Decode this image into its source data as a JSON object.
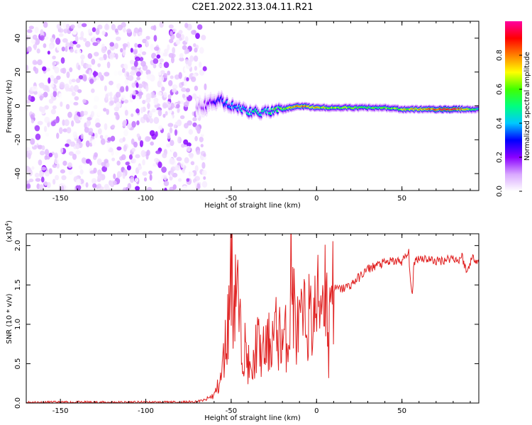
{
  "figure": {
    "title": "C2E1.2022.313.04.11.R21"
  },
  "chart_data": [
    {
      "type": "heatmap",
      "title": "C2E1.2022.313.04.11.R21",
      "xlabel": "Height of straight line (km)",
      "ylabel": "Frequency (Hz)",
      "xlim": [
        -170,
        95
      ],
      "ylim": [
        -50,
        50
      ],
      "xticks": [
        -150,
        -100,
        -50,
        0,
        50
      ],
      "yticks": [
        -40,
        -20,
        0,
        20,
        40
      ],
      "xtick_labels": [
        "-150",
        "-100",
        "-50",
        "0",
        "50"
      ],
      "ytick_labels": [
        "-40",
        "-20",
        "0",
        "20",
        "40"
      ],
      "grid": false,
      "colorbar": {
        "label": "Normalized spectral amplitude",
        "range": [
          0,
          1
        ],
        "ticks": [
          0.0,
          0.2,
          0.4,
          0.6,
          0.8
        ],
        "tick_labels": [
          "0.0",
          "0.2",
          "0.4",
          "0.6",
          "0.8"
        ],
        "colormap": "rainbow",
        "colors": [
          "#ffffff",
          "#d9a8ff",
          "#8a00ff",
          "#0000ff",
          "#00c8ff",
          "#00ff80",
          "#40ff00",
          "#ffff00",
          "#ff8000",
          "#ff0000",
          "#ff00a0"
        ]
      },
      "noise_region": {
        "x": [
          -170,
          -65
        ],
        "y": [
          -50,
          48
        ],
        "amplitude": 0.15
      },
      "ridge": [
        {
          "x": -70,
          "y": -1,
          "width": 12,
          "amplitude": 0.1
        },
        {
          "x": -60,
          "y": 2,
          "width": 10,
          "amplitude": 0.25
        },
        {
          "x": -55,
          "y": 3,
          "width": 9,
          "amplitude": 0.35
        },
        {
          "x": -50,
          "y": 0,
          "width": 8,
          "amplitude": 0.4
        },
        {
          "x": -40,
          "y": -3,
          "width": 7,
          "amplitude": 0.45
        },
        {
          "x": -30,
          "y": -4,
          "width": 7,
          "amplitude": 0.5
        },
        {
          "x": -20,
          "y": -2,
          "width": 6,
          "amplitude": 0.6
        },
        {
          "x": -10,
          "y": 0,
          "width": 5,
          "amplitude": 0.9
        },
        {
          "x": 0,
          "y": -1,
          "width": 5,
          "amplitude": 0.7
        },
        {
          "x": 10,
          "y": -1,
          "width": 5,
          "amplitude": 0.65
        },
        {
          "x": 20,
          "y": -1,
          "width": 5,
          "amplitude": 0.6
        },
        {
          "x": 30,
          "y": -1,
          "width": 5,
          "amplitude": 0.55
        },
        {
          "x": 40,
          "y": -1,
          "width": 5,
          "amplitude": 0.6
        },
        {
          "x": 50,
          "y": -2,
          "width": 5,
          "amplitude": 0.65
        },
        {
          "x": 60,
          "y": -2,
          "width": 5,
          "amplitude": 0.75
        },
        {
          "x": 70,
          "y": -2,
          "width": 5,
          "amplitude": 0.85
        },
        {
          "x": 80,
          "y": -2,
          "width": 5,
          "amplitude": 0.95
        },
        {
          "x": 88,
          "y": -2,
          "width": 5,
          "amplitude": 0.7
        },
        {
          "x": 95,
          "y": -2,
          "width": 5,
          "amplitude": 0.5
        }
      ]
    },
    {
      "type": "line",
      "xlabel": "Height of straight line (km)",
      "ylabel": "SNR (10 * v/v)",
      "y_multiplier_label": "(x10",
      "y_multiplier_exponent": "4",
      "y_multiplier_suffix": ")",
      "xlim": [
        -170,
        95
      ],
      "ylim": [
        0,
        2.15
      ],
      "xticks": [
        -150,
        -100,
        -50,
        0,
        50
      ],
      "yticks": [
        0.0,
        0.5,
        1.0,
        1.5,
        2.0
      ],
      "xtick_labels": [
        "-150",
        "-100",
        "-50",
        "0",
        "50"
      ],
      "ytick_labels": [
        "0.0",
        "0.5",
        "1.0",
        "1.5",
        "2.0"
      ],
      "grid": false,
      "line_color": "#e02020",
      "series": [
        {
          "x": [
            -170,
            -140,
            -100,
            -80,
            -70,
            -65,
            -60,
            -56,
            -53,
            -51,
            -50,
            -49,
            -47,
            -45,
            -42,
            -38,
            -35,
            -32,
            -28,
            -24,
            -20,
            -16,
            -15,
            -12,
            -8,
            -5,
            -3,
            0,
            3,
            6,
            7,
            8,
            10,
            15,
            20,
            25,
            30,
            35,
            40,
            45,
            50,
            54,
            56,
            57,
            60,
            65,
            70,
            75,
            80,
            83,
            85,
            88,
            90,
            92,
            95
          ],
          "y": [
            0.01,
            0.01,
            0.01,
            0.01,
            0.02,
            0.04,
            0.1,
            0.3,
            0.8,
            1.2,
            2.15,
            1.3,
            1.65,
            0.9,
            0.7,
            0.3,
            0.8,
            0.6,
            0.75,
            0.9,
            0.8,
            0.85,
            1.7,
            0.9,
            1.0,
            1.15,
            1.0,
            1.2,
            1.4,
            1.6,
            0.35,
            1.7,
            1.45,
            1.45,
            1.5,
            1.6,
            1.7,
            1.75,
            1.78,
            1.8,
            1.8,
            1.9,
            1.28,
            1.8,
            1.85,
            1.83,
            1.8,
            1.82,
            1.85,
            1.8,
            1.88,
            1.65,
            1.8,
            1.85,
            1.8
          ]
        }
      ]
    }
  ]
}
